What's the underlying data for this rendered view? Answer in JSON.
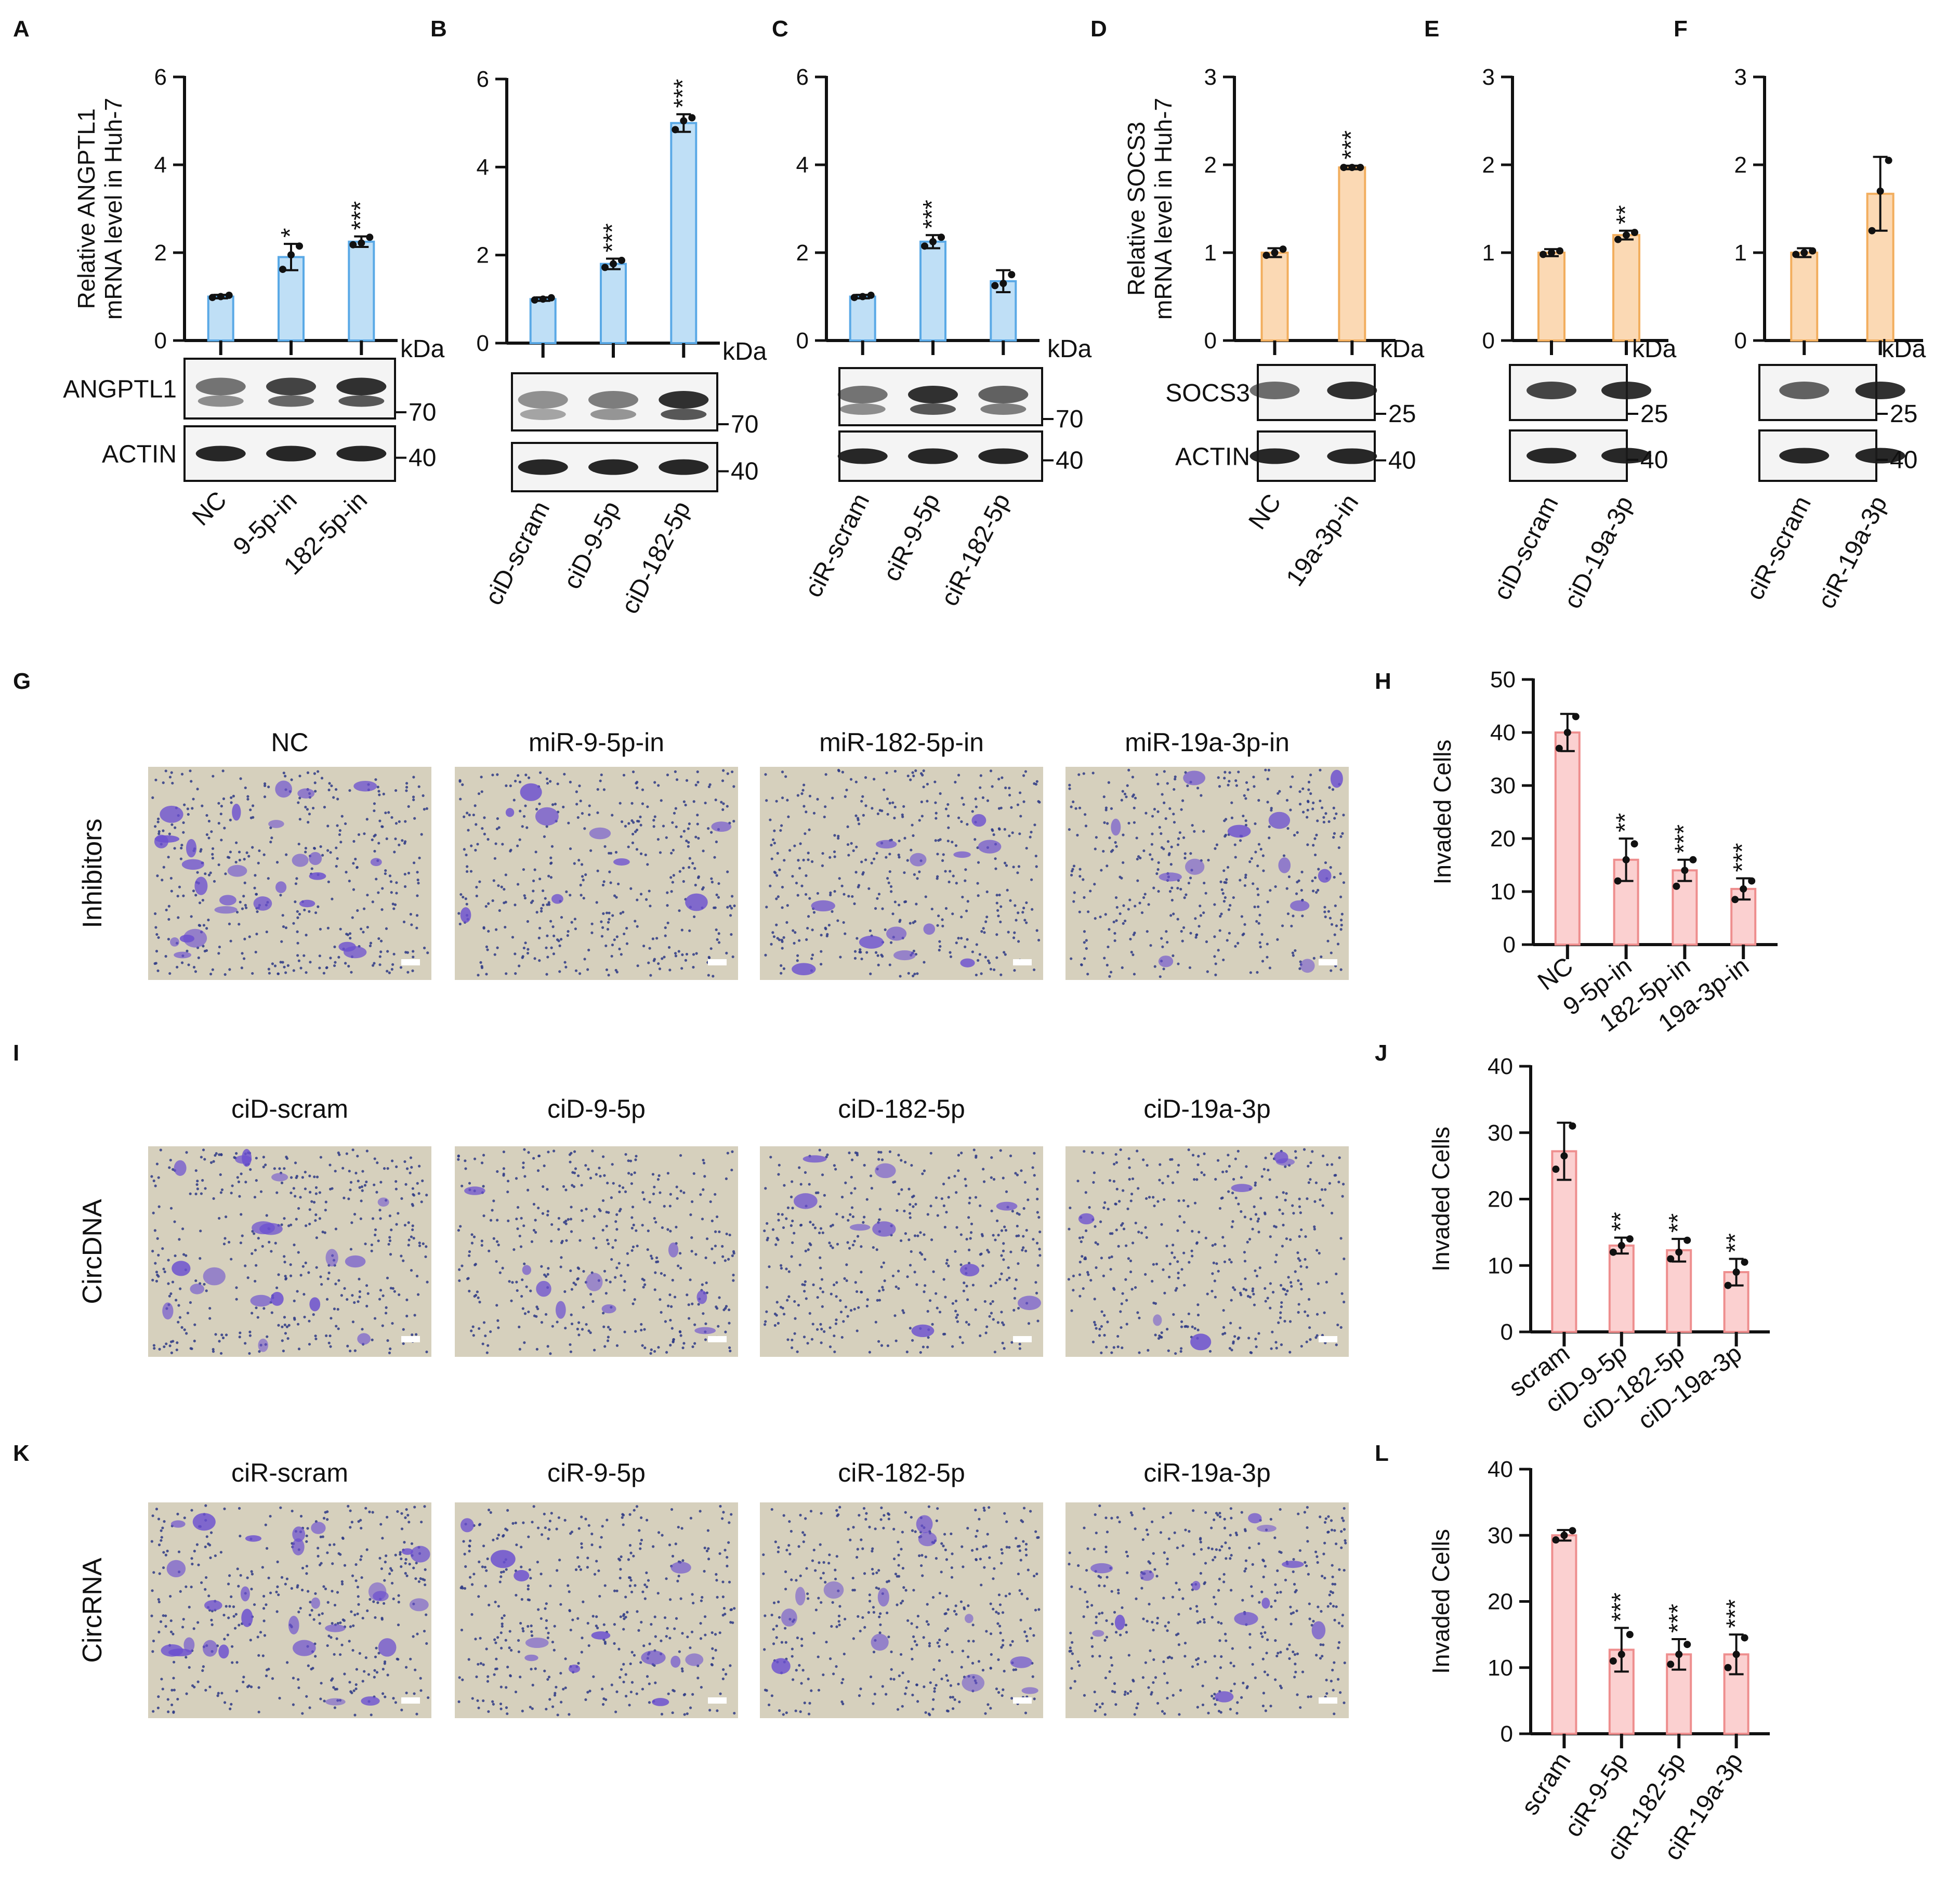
{
  "colors": {
    "blue_fill": "#bfdff6",
    "blue_edge": "#5aa9e6",
    "orange_fill": "#fbd9b4",
    "orange_edge": "#f2ae5e",
    "red_fill": "#fbd0d0",
    "red_edge": "#ee8e8e",
    "stain": "#6b4fd0",
    "dish": "#d6d0bd"
  },
  "kda_label": "kDa",
  "chart_data": [
    {
      "id": "A",
      "letter": "A",
      "type": "bar",
      "color": "blue",
      "ylabel": "Relative ANGPTL1 mRNA level in Huh-7",
      "ylabel_lines": [
        "Relative ANGPTL1",
        "mRNA level in Huh-7"
      ],
      "ylim": [
        0,
        6
      ],
      "yticks": [
        "0",
        "2",
        "4",
        "6"
      ],
      "categories": [
        "NC",
        "9-5p-in",
        "182-5p-in"
      ],
      "values": [
        1.0,
        1.9,
        2.25
      ],
      "errors": [
        0.04,
        0.3,
        0.12
      ],
      "stars": [
        "",
        "*",
        "***"
      ],
      "points": [
        [
          0.98,
          1.0,
          1.03
        ],
        [
          1.62,
          1.95,
          2.15
        ],
        [
          2.18,
          2.22,
          2.35
        ]
      ],
      "blot_labels": [
        "ANGPTL1",
        "ACTIN"
      ],
      "kda_marks": [
        "70",
        "40"
      ]
    },
    {
      "id": "B",
      "letter": "B",
      "type": "bar",
      "color": "blue",
      "ylabel": "",
      "ylabel_lines": [],
      "ylim": [
        0,
        6
      ],
      "yticks": [
        "0",
        "2",
        "4",
        "6"
      ],
      "categories": [
        "ciD-scram",
        "ciD-9-5p",
        "ciD-182-5p"
      ],
      "values": [
        1.0,
        1.8,
        5.0
      ],
      "errors": [
        0.04,
        0.12,
        0.2
      ],
      "stars": [
        "",
        "***",
        "***"
      ],
      "points": [
        [
          0.98,
          1.0,
          1.03
        ],
        [
          1.72,
          1.8,
          1.88
        ],
        [
          4.85,
          5.05,
          5.12
        ]
      ],
      "blot_labels": [],
      "kda_marks": [
        "70",
        "40"
      ]
    },
    {
      "id": "C",
      "letter": "C",
      "type": "bar",
      "color": "blue",
      "ylabel": "",
      "ylabel_lines": [],
      "ylim": [
        0,
        6
      ],
      "yticks": [
        "0",
        "2",
        "4",
        "6"
      ],
      "categories": [
        "ciR-scram",
        "ciR-9-5p",
        "ciR-182-5p"
      ],
      "values": [
        1.0,
        2.25,
        1.35
      ],
      "errors": [
        0.04,
        0.15,
        0.25
      ],
      "stars": [
        "",
        "***",
        ""
      ],
      "points": [
        [
          0.98,
          1.0,
          1.03
        ],
        [
          2.15,
          2.25,
          2.35
        ],
        [
          1.25,
          1.3,
          1.5
        ]
      ],
      "blot_labels": [],
      "kda_marks": [
        "70",
        "40"
      ]
    },
    {
      "id": "D",
      "letter": "D",
      "type": "bar",
      "color": "orange",
      "ylabel": "Relative SOCS3 mRNA level in Huh-7",
      "ylabel_lines": [
        "Relative SOCS3",
        "mRNA level in Huh-7"
      ],
      "ylim": [
        0,
        3
      ],
      "yticks": [
        "0",
        "1",
        "2",
        "3"
      ],
      "categories": [
        "NC",
        "19a-3p-in"
      ],
      "values": [
        1.0,
        1.97
      ],
      "errors": [
        0.05,
        0.02
      ],
      "stars": [
        "",
        "***"
      ],
      "points": [
        [
          0.97,
          1.0,
          1.04
        ],
        [
          1.97,
          1.97,
          1.97
        ]
      ],
      "blot_labels": [
        "SOCS3",
        "ACTIN"
      ],
      "kda_marks": [
        "25",
        "40"
      ]
    },
    {
      "id": "E",
      "letter": "E",
      "type": "bar",
      "color": "orange",
      "ylabel": "",
      "ylabel_lines": [],
      "ylim": [
        0,
        3
      ],
      "yticks": [
        "0",
        "1",
        "2",
        "3"
      ],
      "categories": [
        "ciD-scram",
        "ciD-19a-3p"
      ],
      "values": [
        1.0,
        1.2
      ],
      "errors": [
        0.04,
        0.05
      ],
      "stars": [
        "",
        "**"
      ],
      "points": [
        [
          0.98,
          1.0,
          1.02
        ],
        [
          1.15,
          1.2,
          1.23
        ]
      ],
      "blot_labels": [],
      "kda_marks": [
        "25",
        "40"
      ]
    },
    {
      "id": "F",
      "letter": "F",
      "type": "bar",
      "color": "orange",
      "ylabel": "",
      "ylabel_lines": [],
      "ylim": [
        0,
        3
      ],
      "yticks": [
        "0",
        "1",
        "2",
        "3"
      ],
      "categories": [
        "ciR-scram",
        "ciR-19a-3p"
      ],
      "values": [
        1.0,
        1.67
      ],
      "errors": [
        0.05,
        0.42
      ],
      "stars": [
        "",
        ""
      ],
      "points": [
        [
          0.98,
          1.0,
          1.02
        ],
        [
          1.25,
          1.7,
          2.05
        ]
      ],
      "blot_labels": [],
      "kda_marks": [
        "25",
        "40"
      ]
    },
    {
      "id": "H",
      "letter": "H",
      "type": "bar",
      "color": "red",
      "ylabel": "Invaded Cells",
      "ylabel_lines": [
        "Invaded Cells"
      ],
      "ylim": [
        0,
        50
      ],
      "yticks": [
        "0",
        "10",
        "20",
        "30",
        "40",
        "50"
      ],
      "categories": [
        "NC",
        "9-5p-in",
        "182-5p-in",
        "19a-3p-in"
      ],
      "values": [
        40,
        16,
        14,
        10.5
      ],
      "errors": [
        3.5,
        4,
        2,
        2
      ],
      "stars": [
        "",
        "**",
        "***",
        "***"
      ],
      "points": [
        [
          37,
          40,
          43
        ],
        [
          12,
          16,
          19
        ],
        [
          11,
          14,
          16
        ],
        [
          8.5,
          10.5,
          12
        ]
      ],
      "blot_labels": [],
      "kda_marks": []
    },
    {
      "id": "J",
      "letter": "J",
      "type": "bar",
      "color": "red",
      "ylabel": "Invaded Cells",
      "ylabel_lines": [
        "Invaded Cells"
      ],
      "ylim": [
        0,
        40
      ],
      "yticks": [
        "0",
        "10",
        "20",
        "30",
        "40"
      ],
      "categories": [
        "scram",
        "ciD-9-5p",
        "ciD-182-5p",
        "ciD-19a-3p"
      ],
      "values": [
        27.2,
        13,
        12.3,
        9
      ],
      "errors": [
        4.3,
        1.2,
        1.7,
        2
      ],
      "stars": [
        "",
        "**",
        "**",
        "**"
      ],
      "points": [
        [
          24.5,
          26.5,
          31
        ],
        [
          12,
          13,
          14
        ],
        [
          11,
          12,
          13.8
        ],
        [
          7,
          9,
          10.5
        ]
      ],
      "blot_labels": [],
      "kda_marks": []
    },
    {
      "id": "L",
      "letter": "L",
      "type": "bar",
      "color": "red",
      "ylabel": "Invaded Cells",
      "ylabel_lines": [
        "Invaded Cells"
      ],
      "ylim": [
        0,
        40
      ],
      "yticks": [
        "0",
        "10",
        "20",
        "30",
        "40"
      ],
      "categories": [
        "scram",
        "ciR-9-5p",
        "ciR-182-5p",
        "ciR-19a-3p"
      ],
      "values": [
        30,
        12.7,
        12,
        12
      ],
      "errors": [
        0.8,
        3.3,
        2.3,
        3
      ],
      "stars": [
        "",
        "***",
        "***",
        "***"
      ],
      "points": [
        [
          29.3,
          30,
          30.7
        ],
        [
          11,
          12,
          15
        ],
        [
          10.5,
          12,
          13.5
        ],
        [
          10,
          12,
          14.5
        ]
      ],
      "blot_labels": [],
      "kda_marks": []
    }
  ],
  "image_panels": [
    {
      "id": "G",
      "letter": "G",
      "row_label": "Inhibitors",
      "titles": [
        "NC",
        "miR-9-5p-in",
        "miR-182-5p-in",
        "miR-19a-3p-in"
      ],
      "stain_density": [
        9,
        3,
        4,
        4
      ]
    },
    {
      "id": "I",
      "letter": "I",
      "row_label": "CircDNA",
      "titles": [
        "ciD-scram",
        "ciD-9-5p",
        "ciD-182-5p",
        "ciD-19a-3p"
      ],
      "stain_density": [
        6,
        3,
        3,
        2
      ]
    },
    {
      "id": "K",
      "letter": "K",
      "row_label": "CircRNA",
      "titles": [
        "ciR-scram",
        "ciR-9-5p",
        "ciR-182-5p",
        "ciR-19a-3p"
      ],
      "stain_density": [
        9,
        4,
        4,
        4
      ]
    }
  ]
}
